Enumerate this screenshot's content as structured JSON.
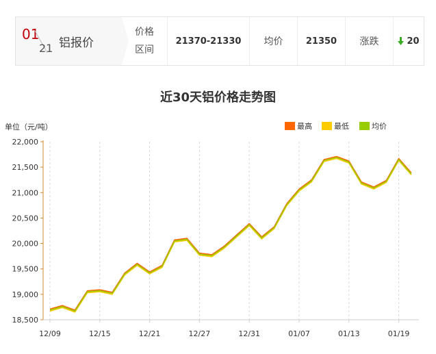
{
  "price_bar": {
    "month": "01",
    "day": "21",
    "title": "铝报价",
    "range_label_1": "价格",
    "range_label_2": "区间",
    "range_value": "21370-21330",
    "avg_label": "均价",
    "avg_value": "21350",
    "change_label": "涨跌",
    "change_value": "20",
    "change_color": "#3cab26",
    "change_icon": "down-arrow-icon"
  },
  "chart_data": {
    "type": "line",
    "title": "近30天铝价格走势图",
    "ylabel": "单位（元/吨）",
    "ylim": [
      18500,
      22000
    ],
    "yticks": [
      "22,000",
      "21,500",
      "21,000",
      "20,500",
      "20,000",
      "19,500",
      "19,000",
      "18,500"
    ],
    "ytick_values": [
      22000,
      21500,
      21000,
      20500,
      20000,
      19500,
      19000,
      18500
    ],
    "xtick_labels": [
      "12/09",
      "12/15",
      "12/21",
      "12/27",
      "12/31",
      "01/07",
      "01/13",
      "01/19"
    ],
    "legend_position": "top-right",
    "grid": "vertical-dashed",
    "series": [
      {
        "name": "最高",
        "color": "#ff6600",
        "values": [
          18710,
          18780,
          18690,
          19070,
          19090,
          19040,
          19420,
          19610,
          19440,
          19570,
          20070,
          20100,
          19810,
          19780,
          19950,
          20170,
          20390,
          20130,
          20330,
          20780,
          21070,
          21250,
          21650,
          21710,
          21620,
          21210,
          21110,
          21240,
          21670,
          21390
        ]
      },
      {
        "name": "最低",
        "color": "#ffcc00",
        "values": [
          18670,
          18740,
          18650,
          19030,
          19050,
          19000,
          19380,
          19570,
          19400,
          19530,
          20030,
          20060,
          19770,
          19740,
          19910,
          20130,
          20350,
          20090,
          20290,
          20740,
          21030,
          21210,
          21610,
          21670,
          21580,
          21170,
          21070,
          21200,
          21630,
          21350
        ]
      },
      {
        "name": "均价",
        "color": "#99cc00",
        "values": [
          18690,
          18760,
          18670,
          19050,
          19070,
          19020,
          19400,
          19590,
          19420,
          19550,
          20050,
          20080,
          19790,
          19760,
          19930,
          20150,
          20370,
          20110,
          20310,
          20760,
          21050,
          21230,
          21630,
          21690,
          21600,
          21190,
          21090,
          21220,
          21650,
          21370
        ]
      }
    ]
  }
}
